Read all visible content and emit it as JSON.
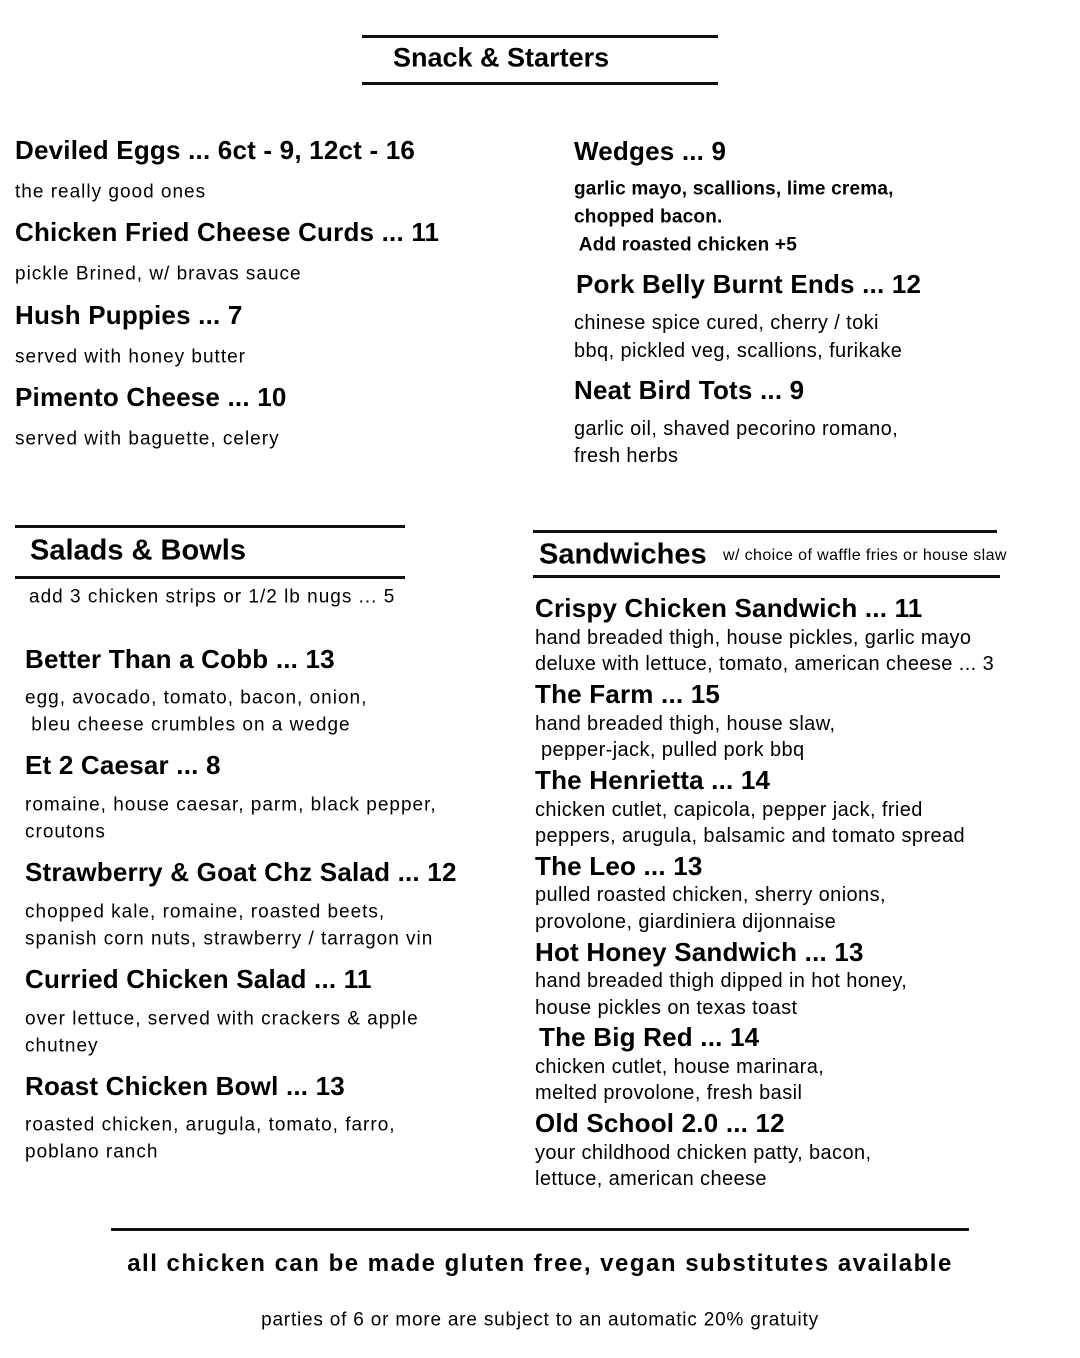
{
  "starters": {
    "heading": "Snack & Starters",
    "left": [
      {
        "title": "Deviled Eggs ... 6ct - 9, 12ct - 16",
        "desc": [
          "the really good ones"
        ]
      },
      {
        "title": "Chicken Fried Cheese Curds ... 11",
        "desc": [
          "pickle Brined, w/ bravas sauce"
        ]
      },
      {
        "title": "Hush Puppies ... 7",
        "desc": [
          "served with honey butter"
        ]
      },
      {
        "title": "Pimento Cheese ... 10",
        "desc": [
          "served with baguette, celery"
        ]
      }
    ],
    "right": [
      {
        "title": "Wedges ... 9",
        "desc": [
          "garlic mayo, scallions, lime crema,",
          "chopped bacon.",
          " Add roasted chicken +5"
        ]
      },
      {
        "title": "Pork Belly Burnt Ends ... 12",
        "desc": [
          "chinese spice cured, cherry / toki",
          "bbq, pickled veg, scallions, furikake"
        ]
      },
      {
        "title": "Neat Bird Tots ... 9",
        "desc": [
          "garlic oil, shaved pecorino romano,",
          "fresh herbs"
        ]
      }
    ]
  },
  "salads": {
    "heading": "Salads & Bowls",
    "note": "add 3 chicken strips or 1/2 lb nugs ... 5",
    "items": [
      {
        "title": "Better Than a Cobb ... 13",
        "desc": [
          "egg, avocado, tomato, bacon, onion,",
          " bleu cheese crumbles on a wedge"
        ]
      },
      {
        "title": "Et 2 Caesar ... 8",
        "desc": [
          "romaine, house caesar, parm, black pepper,",
          "croutons"
        ]
      },
      {
        "title": "Strawberry & Goat Chz Salad ... 12",
        "desc": [
          "chopped kale, romaine, roasted beets,",
          "spanish corn nuts, strawberry / tarragon vin"
        ]
      },
      {
        "title": "Curried Chicken Salad ... 11",
        "desc": [
          "over lettuce, served with crackers & apple",
          "chutney"
        ]
      },
      {
        "title": "Roast Chicken Bowl ... 13",
        "desc": [
          "roasted chicken, arugula, tomato, farro,",
          "poblano ranch"
        ]
      }
    ]
  },
  "sandwiches": {
    "heading": "Sandwiches",
    "note": "w/ choice of waffle fries or house slaw",
    "items": [
      {
        "title": "Crispy Chicken Sandwich ... 11",
        "desc": [
          "hand breaded thigh, house pickles, garlic mayo",
          "deluxe with lettuce, tomato, american cheese ... 3"
        ]
      },
      {
        "title": "The Farm ... 15",
        "desc": [
          "hand breaded thigh, house slaw,",
          " pepper-jack, pulled pork bbq"
        ]
      },
      {
        "title": "The Henrietta ... 14",
        "desc": [
          "chicken cutlet, capicola, pepper jack, fried",
          "peppers, arugula, balsamic and tomato spread"
        ]
      },
      {
        "title": "The Leo ... 13",
        "desc": [
          "pulled roasted chicken, sherry onions,",
          "provolone, giardiniera dijonnaise"
        ]
      },
      {
        "title": "Hot Honey Sandwich ... 13",
        "desc": [
          "hand breaded thigh dipped in hot honey,",
          "house pickles on texas toast"
        ]
      },
      {
        "title": "The Big Red ... 14",
        "desc": [
          "chicken cutlet, house marinara,",
          "melted provolone, fresh basil"
        ]
      },
      {
        "title": "Old School 2.0 ... 12",
        "desc": [
          "your childhood chicken patty, bacon,",
          "lettuce, american cheese"
        ]
      }
    ]
  },
  "footer": {
    "main": "all chicken can be made gluten free, vegan substitutes available",
    "note": "parties of 6 or more are subject to an automatic 20% gratuity"
  }
}
